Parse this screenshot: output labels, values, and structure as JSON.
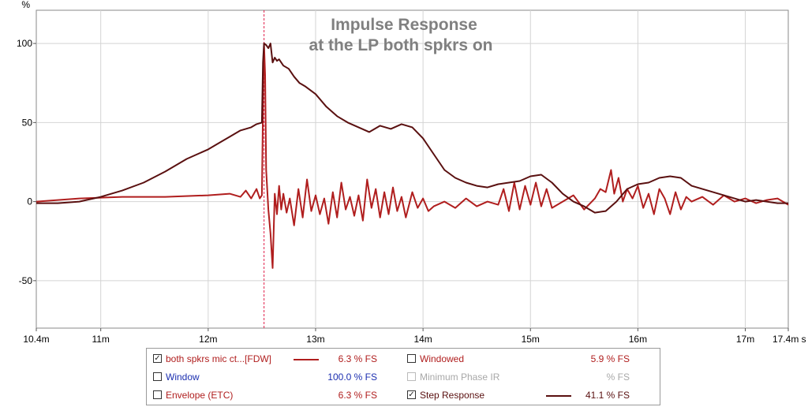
{
  "chart_data": {
    "type": "line",
    "title": "Impulse Response",
    "subtitle": "at the LP both spkrs on",
    "ylabel": "%",
    "xlabel": "s",
    "xlim": [
      10.4,
      17.4
    ],
    "ylim": [
      -80,
      121
    ],
    "x_unit": "ms",
    "grid": true,
    "x_ticks": [
      10.4,
      11,
      12,
      13,
      14,
      15,
      16,
      17,
      17.4
    ],
    "x_tick_labels": [
      "10.4m",
      "11m",
      "12m",
      "13m",
      "14m",
      "15m",
      "16m",
      "17m",
      "17.4m s"
    ],
    "y_ticks": [
      100,
      50,
      0,
      -50
    ],
    "y_tick_labels": [
      "100",
      "50",
      "0",
      "-50"
    ],
    "marker_x": 12.52,
    "series": [
      {
        "name": "both spkrs mic ct...[FDW]",
        "color": "#b01e1e",
        "x": [
          10.4,
          10.8,
          11.2,
          11.6,
          12.0,
          12.2,
          12.3,
          12.35,
          12.4,
          12.45,
          12.48,
          12.5,
          12.51,
          12.52,
          12.53,
          12.54,
          12.56,
          12.58,
          12.6,
          12.62,
          12.64,
          12.66,
          12.68,
          12.7,
          12.73,
          12.76,
          12.8,
          12.84,
          12.88,
          12.92,
          12.96,
          13.0,
          13.04,
          13.08,
          13.12,
          13.16,
          13.2,
          13.24,
          13.28,
          13.32,
          13.36,
          13.4,
          13.44,
          13.48,
          13.52,
          13.56,
          13.6,
          13.64,
          13.68,
          13.72,
          13.76,
          13.8,
          13.84,
          13.9,
          13.95,
          14.0,
          14.05,
          14.1,
          14.2,
          14.3,
          14.4,
          14.5,
          14.6,
          14.7,
          14.75,
          14.8,
          14.85,
          14.9,
          14.95,
          15.0,
          15.05,
          15.1,
          15.15,
          15.2,
          15.3,
          15.4,
          15.5,
          15.6,
          15.65,
          15.7,
          15.75,
          15.78,
          15.82,
          15.86,
          15.9,
          15.95,
          16.0,
          16.05,
          16.1,
          16.15,
          16.2,
          16.25,
          16.3,
          16.35,
          16.4,
          16.45,
          16.5,
          16.6,
          16.7,
          16.8,
          16.9,
          17.0,
          17.1,
          17.2,
          17.3,
          17.4
        ],
        "values": [
          0,
          2,
          3,
          3,
          4,
          5,
          3,
          7,
          2,
          8,
          2,
          4,
          60,
          100,
          80,
          20,
          -5,
          -20,
          -42,
          5,
          -8,
          10,
          -5,
          5,
          -7,
          2,
          -15,
          8,
          -10,
          14,
          -6,
          4,
          -8,
          2,
          -14,
          6,
          -10,
          12,
          -5,
          3,
          -9,
          4,
          -12,
          14,
          -4,
          8,
          -10,
          6,
          -8,
          9,
          -6,
          3,
          -10,
          6,
          -4,
          2,
          -6,
          -3,
          0,
          -4,
          2,
          -3,
          0,
          -2,
          8,
          -6,
          12,
          -5,
          10,
          -2,
          12,
          -3,
          8,
          -4,
          0,
          4,
          -5,
          2,
          8,
          6,
          20,
          5,
          15,
          0,
          8,
          2,
          10,
          -4,
          5,
          -8,
          8,
          2,
          -8,
          6,
          -5,
          3,
          0,
          3,
          -2,
          4,
          0,
          2,
          -1,
          1,
          2,
          -2
        ]
      },
      {
        "name": "Step Response",
        "color": "#5a1010",
        "x": [
          10.4,
          10.6,
          10.8,
          11.0,
          11.2,
          11.4,
          11.6,
          11.8,
          12.0,
          12.1,
          12.2,
          12.3,
          12.35,
          12.4,
          12.45,
          12.5,
          12.51,
          12.52,
          12.54,
          12.56,
          12.58,
          12.6,
          12.62,
          12.64,
          12.66,
          12.7,
          12.75,
          12.8,
          12.85,
          12.9,
          13.0,
          13.1,
          13.2,
          13.3,
          13.4,
          13.5,
          13.6,
          13.7,
          13.8,
          13.9,
          14.0,
          14.1,
          14.2,
          14.3,
          14.4,
          14.5,
          14.6,
          14.7,
          14.8,
          14.9,
          15.0,
          15.1,
          15.2,
          15.3,
          15.4,
          15.5,
          15.6,
          15.7,
          15.8,
          15.9,
          16.0,
          16.1,
          16.2,
          16.3,
          16.4,
          16.5,
          16.6,
          16.7,
          16.8,
          16.9,
          17.0,
          17.1,
          17.2,
          17.3,
          17.4
        ],
        "values": [
          -1,
          -1,
          0,
          3,
          7,
          12,
          19,
          27,
          33,
          37,
          41,
          45,
          46,
          47,
          49,
          50,
          88,
          100,
          99,
          97,
          100,
          88,
          91,
          89,
          90,
          86,
          84,
          79,
          75,
          73,
          68,
          60,
          54,
          50,
          47,
          44,
          48,
          46,
          49,
          47,
          40,
          30,
          20,
          15,
          12,
          10,
          9,
          11,
          12,
          13,
          16,
          17,
          12,
          5,
          0,
          -3,
          -7,
          -6,
          0,
          8,
          11,
          12,
          15,
          16,
          15,
          10,
          8,
          6,
          4,
          2,
          0,
          1,
          0,
          -1,
          -1
        ]
      }
    ]
  },
  "legend": {
    "rows": [
      {
        "label": "both spkrs mic ct...[FDW]",
        "value": "6.3 % FS",
        "checked": true,
        "check_glyph": "✓",
        "label_color": "#b01e1e",
        "value_color": "#b01e1e",
        "swatch_color": "#b01e1e"
      },
      {
        "label": "Windowed",
        "value": "5.9 % FS",
        "checked": false,
        "check_glyph": "",
        "label_color": "#b01e1e",
        "value_color": "#b01e1e",
        "swatch_color": ""
      },
      {
        "label": "Window",
        "value": "100.0 % FS",
        "checked": false,
        "check_glyph": "",
        "label_color": "#1c2fb0",
        "value_color": "#1c2fb0",
        "swatch_color": ""
      },
      {
        "label": "Minimum Phase IR",
        "value": "% FS",
        "checked": false,
        "check_glyph": "",
        "label_color": "#a8a8a8",
        "value_color": "#a8a8a8",
        "swatch_color": "",
        "disabled": true
      },
      {
        "label": "Envelope (ETC)",
        "value": "6.3 % FS",
        "checked": false,
        "check_glyph": "",
        "label_color": "#b01e1e",
        "value_color": "#b01e1e",
        "swatch_color": ""
      },
      {
        "label": "Step Response",
        "value": "41.1 % FS",
        "checked": true,
        "check_glyph": "✓",
        "label_color": "#5a1010",
        "value_color": "#5a1010",
        "swatch_color": "#5a1010"
      }
    ]
  }
}
